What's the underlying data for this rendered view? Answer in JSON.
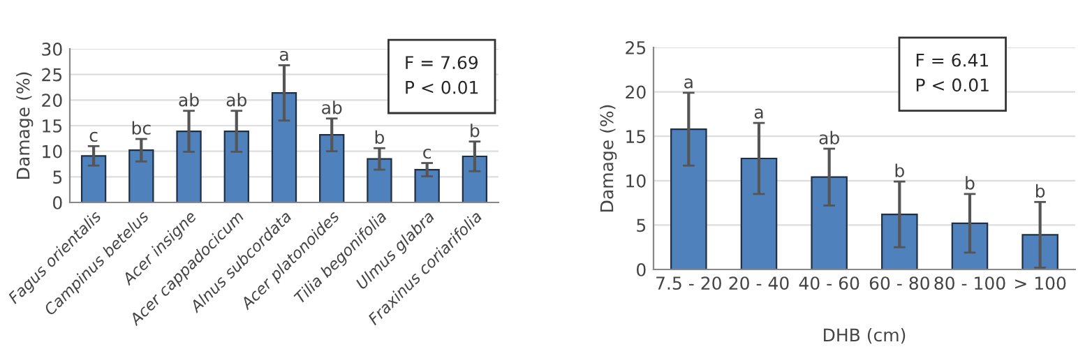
{
  "chart_data": [
    {
      "type": "bar",
      "ylabel": "Damage (%)",
      "categories": [
        "Fagus orientalis",
        "Campinus betelus",
        "Acer insigne",
        "Acer cappadocicum",
        "Alnus subcordata",
        "Acer platonoides",
        "Tilia begonifolia",
        "Ulmus glabra",
        "Fraxinus coriarifolia"
      ],
      "values": [
        9.1,
        10.2,
        13.9,
        13.9,
        21.4,
        13.2,
        8.5,
        6.4,
        9.0
      ],
      "errors": [
        1.9,
        2.2,
        4.0,
        4.0,
        5.4,
        3.2,
        2.1,
        1.3,
        2.9
      ],
      "color": "#4f81bd",
      "ylim": [
        0,
        30
      ],
      "yticks": [
        0,
        5,
        10,
        15,
        20,
        25,
        30
      ],
      "grid": "y",
      "annotations": [
        "F = 7.69\nP < 0.01",
        {
          "text": "c",
          "x": "Fagus orientalis",
          "y": 11.0
        },
        {
          "text": "bc",
          "x": "Campinus betelus",
          "y": 12.4
        },
        {
          "text": "ab",
          "x": "Acer insigne",
          "y": 17.9
        },
        {
          "text": "ab",
          "x": "Acer cappadocicum",
          "y": 17.9
        },
        {
          "text": "a",
          "x": "Alnus subcordata",
          "y": 26.8
        },
        {
          "text": "ab",
          "x": "Acer platonoides",
          "y": 16.4
        },
        {
          "text": "b",
          "x": "Tilia begonifolia",
          "y": 10.6
        },
        {
          "text": "c",
          "x": "Ulmus glabra",
          "y": 7.7
        },
        {
          "text": "b",
          "x": "Fraxinus coriarifolia",
          "y": 11.9
        }
      ]
    },
    {
      "type": "bar",
      "ylabel": "Damage (%)",
      "xlabel": "DHB (cm)",
      "categories": [
        "7.5 - 20",
        "20 - 40",
        "40 - 60",
        "60 - 80",
        "80 - 100",
        "> 100"
      ],
      "values": [
        15.8,
        12.5,
        10.4,
        6.2,
        5.2,
        3.9
      ],
      "errors": [
        4.1,
        4.0,
        3.2,
        3.7,
        3.3,
        3.7
      ],
      "color": "#4f81bd",
      "ylim": [
        0,
        25
      ],
      "yticks": [
        0,
        5,
        10,
        15,
        20,
        25
      ],
      "grid": "y",
      "annotations": [
        "F = 6.41\nP < 0.01",
        {
          "text": "a",
          "x": "7.5 - 20",
          "y": 19.9
        },
        {
          "text": "a",
          "x": "20 - 40",
          "y": 16.5
        },
        {
          "text": "ab",
          "x": "40 - 60",
          "y": 13.6
        },
        {
          "text": "b",
          "x": "60 - 80",
          "y": 9.9
        },
        {
          "text": "b",
          "x": "80 - 100",
          "y": 8.5
        },
        {
          "text": "b",
          "x": "> 100",
          "y": 7.6
        }
      ]
    }
  ]
}
